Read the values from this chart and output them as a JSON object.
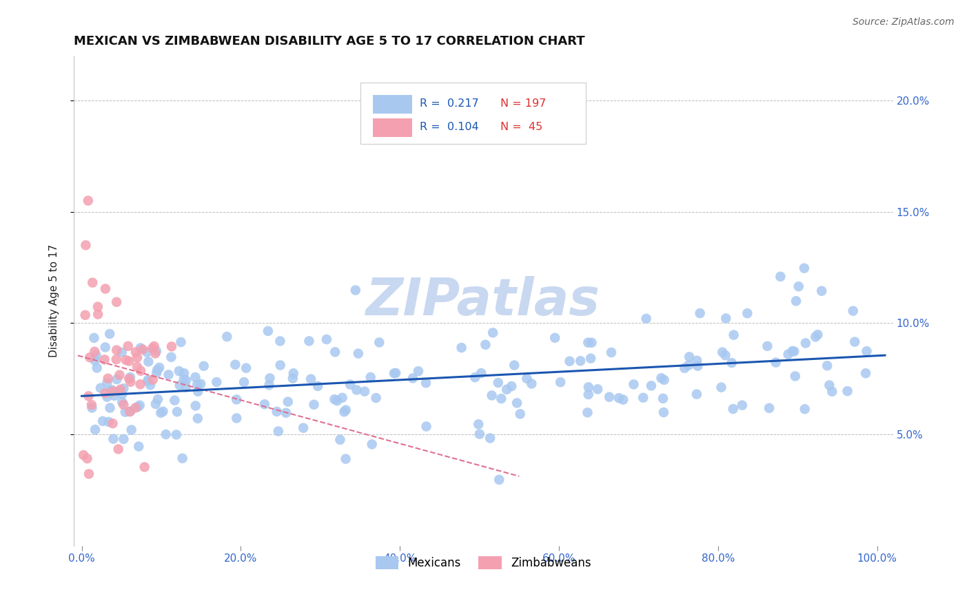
{
  "title": "MEXICAN VS ZIMBABWEAN DISABILITY AGE 5 TO 17 CORRELATION CHART",
  "source": "Source: ZipAtlas.com",
  "ylabel": "Disability Age 5 to 17",
  "xlim": [
    -0.01,
    1.02
  ],
  "ylim": [
    0.0,
    0.22
  ],
  "xticklabels": [
    "0.0%",
    "20.0%",
    "40.0%",
    "60.0%",
    "80.0%",
    "100.0%"
  ],
  "xtick_positions": [
    0.0,
    0.2,
    0.4,
    0.6,
    0.8,
    1.0
  ],
  "ytick_positions": [
    0.05,
    0.1,
    0.15,
    0.2
  ],
  "ytick_labels": [
    "5.0%",
    "10.0%",
    "15.0%",
    "20.0%"
  ],
  "mexican_color": "#a8c8f0",
  "zimbabwean_color": "#f4a0b0",
  "trendline_mexican_color": "#1a56b0",
  "trendline_zimbabwean_color": "#e07090",
  "mexican_R": 0.217,
  "mexican_N": 197,
  "zimbabwean_R": 0.104,
  "zimbabwean_N": 45,
  "legend_R_color": "#1a56b0",
  "legend_N_color": "#e03030",
  "watermark_color": "#c8d8f0",
  "seed": 42
}
